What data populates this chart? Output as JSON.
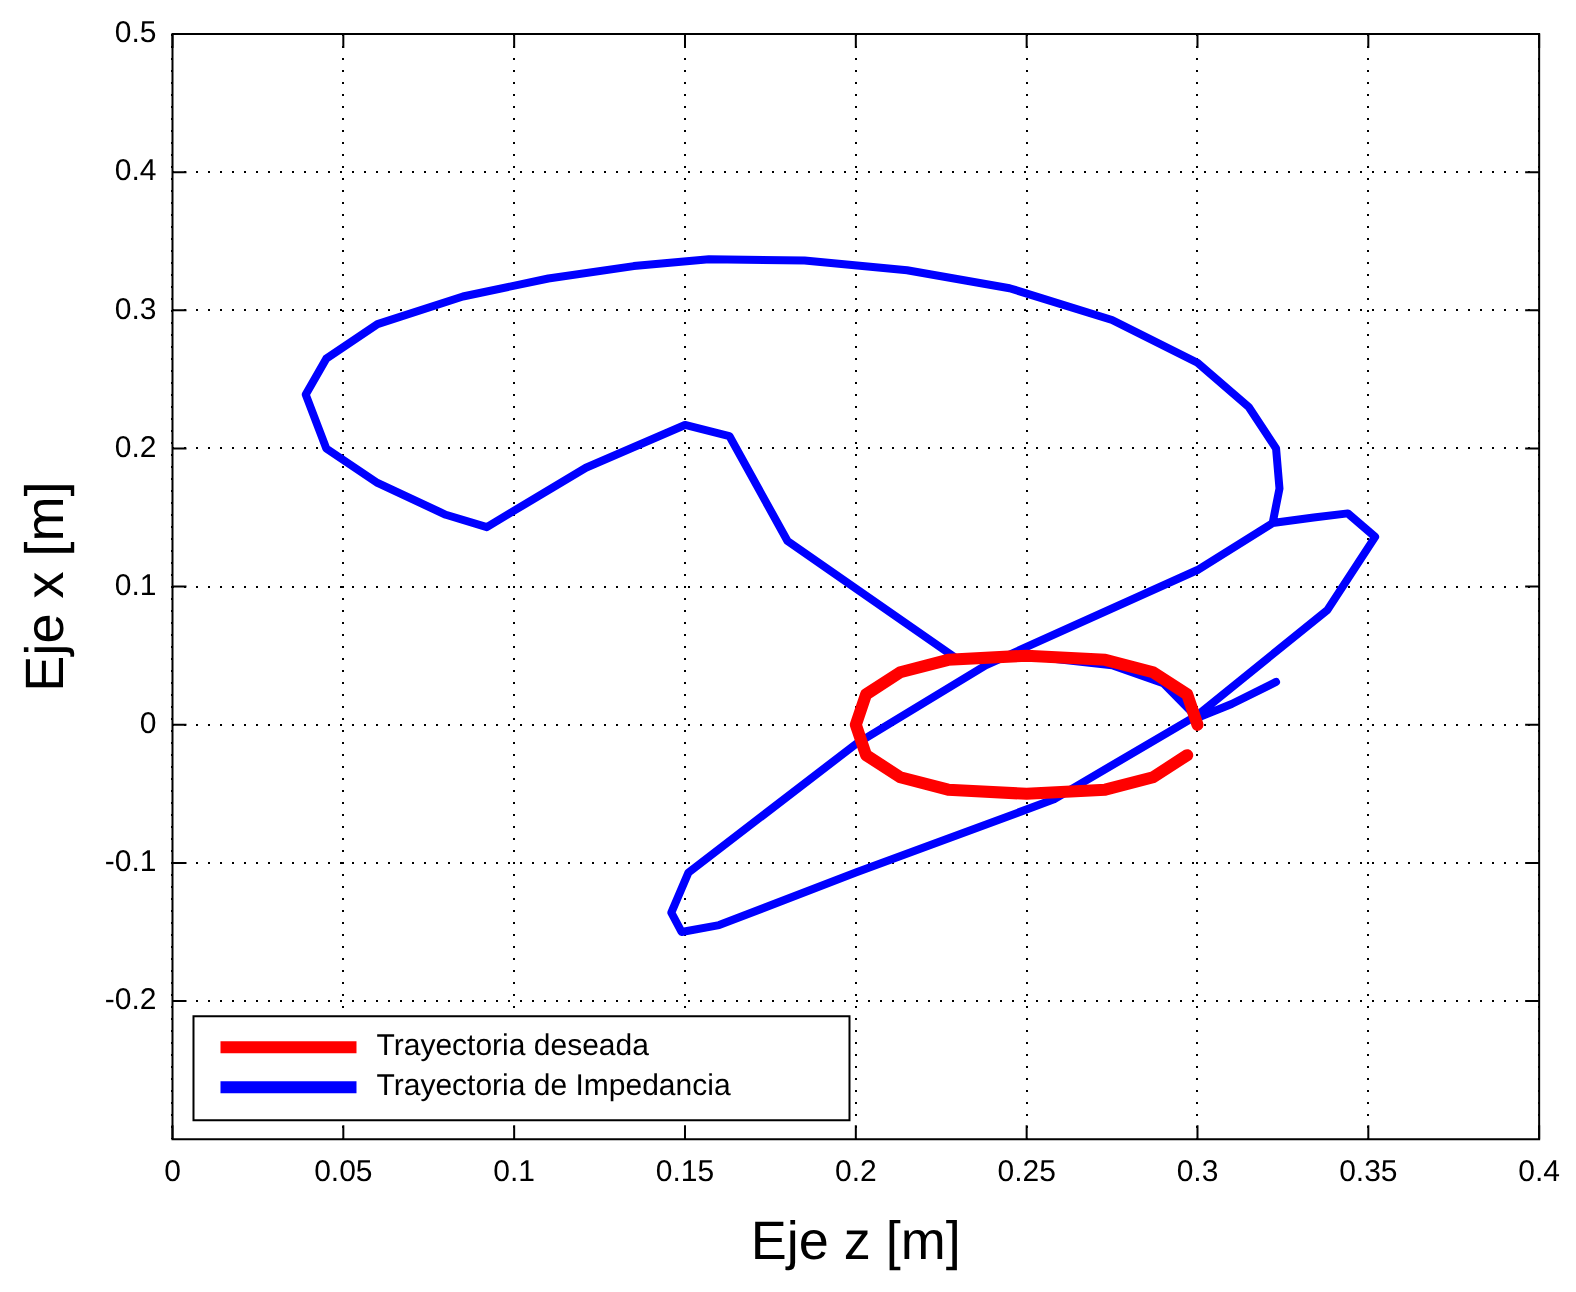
{
  "chart_data": {
    "type": "line",
    "xlabel": "Eje z [m]",
    "ylabel": "Eje x [m]",
    "xlim": [
      0,
      0.4
    ],
    "xticks": [
      0,
      0.05,
      0.1,
      0.15,
      0.2,
      0.25,
      0.3,
      0.35,
      0.4
    ],
    "ylim": [
      -0.3,
      0.5
    ],
    "yticks": [
      -0.2,
      -0.1,
      0,
      0.1,
      0.2,
      0.3,
      0.4,
      0.5
    ],
    "grid": true,
    "legend": "bottom left",
    "marker": "none",
    "line_style": "solid",
    "series": [
      {
        "name": "Trayectoria deseada",
        "color": "#ff0000",
        "x": [
          0.3,
          0.297,
          0.287,
          0.273,
          0.25,
          0.227,
          0.213,
          0.203,
          0.2,
          0.203,
          0.213,
          0.227,
          0.25,
          0.273,
          0.287,
          0.297
        ],
        "values": [
          0,
          0.022,
          0.038,
          0.047,
          0.05,
          0.047,
          0.038,
          0.022,
          0,
          -0.022,
          -0.038,
          -0.047,
          -0.05,
          -0.047,
          -0.038,
          -0.022
        ]
      },
      {
        "name": "Trayectoria de Impedancia",
        "color": "#0000ff",
        "x": [
          0.323,
          0.31,
          0.3,
          0.29,
          0.275,
          0.25,
          0.23,
          0.18,
          0.163,
          0.15,
          0.121,
          0.1,
          0.092,
          0.08,
          0.06,
          0.045,
          0.039,
          0.045,
          0.06,
          0.085,
          0.11,
          0.135,
          0.157,
          0.185,
          0.215,
          0.245,
          0.275,
          0.3,
          0.315,
          0.323,
          0.324,
          0.322,
          0.334,
          0.344,
          0.352,
          0.338,
          0.3,
          0.258,
          0.2,
          0.16,
          0.149,
          0.146,
          0.151,
          0.2,
          0.238,
          0.3,
          0.322
        ],
        "values": [
          0.031,
          0.015,
          0.005,
          0.03,
          0.043,
          0.05,
          0.047,
          0.133,
          0.209,
          0.217,
          0.186,
          0.155,
          0.143,
          0.152,
          0.175,
          0.2,
          0.239,
          0.265,
          0.29,
          0.31,
          0.323,
          0.332,
          0.337,
          0.336,
          0.329,
          0.316,
          0.293,
          0.262,
          0.23,
          0.2,
          0.171,
          0.146,
          0.15,
          0.153,
          0.136,
          0.083,
          0.007,
          -0.054,
          -0.107,
          -0.145,
          -0.15,
          -0.136,
          -0.107,
          -0.014,
          0.043,
          0.112,
          0.146
        ]
      }
    ]
  }
}
